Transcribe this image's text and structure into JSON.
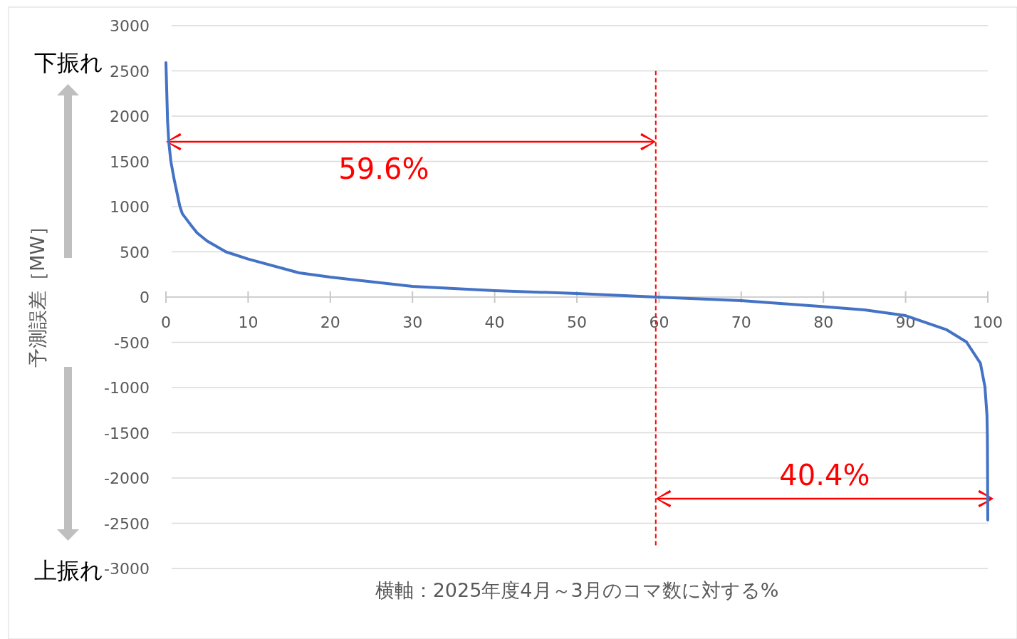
{
  "chart_data": {
    "type": "line",
    "xlabel": "横軸：2025年度4月～3月のコマ数に対する%",
    "ylabel": "予測誤差［MW］",
    "x": [
      0,
      0.2,
      0.35,
      0.6,
      1,
      1.7,
      2,
      3,
      3.8,
      5,
      7.3,
      10,
      16.2,
      20,
      30,
      40,
      50,
      59.6,
      70,
      79.5,
      85,
      90,
      95,
      97.4,
      99.1,
      99.65,
      99.9,
      99.95,
      100
    ],
    "series": [
      {
        "color": "#4472c4",
        "values": [
          2590,
          1945,
          1709,
          1500,
          1300,
          1000,
          920,
          800,
          709,
          620,
          500,
          420,
          268,
          220,
          118,
          71,
          39,
          0,
          -39,
          -102,
          -142,
          -205,
          -362,
          -496,
          -732,
          -992,
          -1307,
          -1543,
          -2465
        ]
      }
    ],
    "xlim": [
      0,
      100
    ],
    "xticks": [
      0,
      10,
      20,
      30,
      40,
      50,
      60,
      70,
      80,
      90,
      100
    ],
    "ylim": [
      -3000,
      3000
    ],
    "yticks": [
      -3000,
      -2500,
      -2000,
      -1500,
      -1000,
      -500,
      0,
      500,
      1000,
      1500,
      2000,
      2500,
      3000
    ],
    "grid": "y",
    "marker": "none",
    "line_style": "solid",
    "ref_lines": [
      {
        "axis": "x",
        "value": 59.6,
        "color": "#ff0000",
        "line_style": "dashed"
      }
    ],
    "annotations": [
      "下振れ",
      "上振れ",
      "59.6%",
      "40.4%"
    ]
  }
}
